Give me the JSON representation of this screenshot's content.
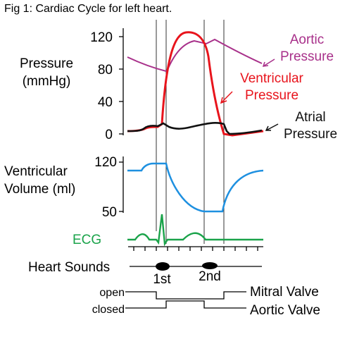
{
  "figure": {
    "title": "Fig 1: Cardiac Cycle for left heart.",
    "pressure_panel": {
      "ylabel_line1": "Pressure",
      "ylabel_line2": "(mmHg)",
      "ticks": [
        "120",
        "80",
        "40",
        "0"
      ],
      "aortic_label_line1": "Aortic",
      "aortic_label_line2": "Pressure",
      "ventricular_label_line1": "Ventricular",
      "ventricular_label_line2": "Pressure",
      "atrial_label_line1": "Atrial",
      "atrial_label_line2": "Pressure"
    },
    "volume_panel": {
      "ylabel_line1": "Ventricular",
      "ylabel_line2": "Volume (ml)",
      "ticks": [
        "120",
        "50"
      ]
    },
    "ecg_label": "ECG",
    "heart_sounds": {
      "label": "Heart Sounds",
      "first": "1st",
      "second": "2nd"
    },
    "valves": {
      "open_label": "open",
      "closed_label": "closed",
      "mitral_label": "Mitral Valve",
      "aortic_label": "Aortic Valve"
    }
  },
  "colors": {
    "aortic": "#a8308a",
    "ventricular": "#e8141c",
    "atrial": "#111111",
    "volume": "#1e90e0",
    "ecg": "#1aa34a",
    "text": "#000000"
  }
}
